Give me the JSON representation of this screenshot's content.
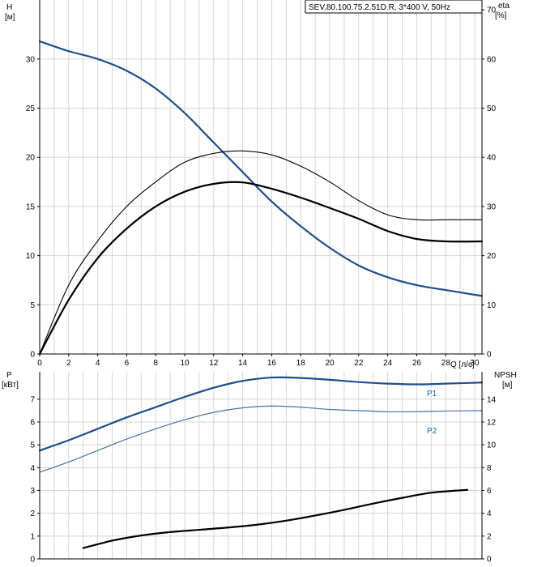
{
  "chart_data": [
    {
      "type": "line",
      "title": "SEV.80.100.75.2.51D.R, 3*400 V, 50Hz",
      "xlabel": "Q [л/с]",
      "xlim": [
        0,
        30.5
      ],
      "xticks": [
        0,
        2,
        4,
        6,
        8,
        10,
        12,
        14,
        16,
        18,
        20,
        22,
        24,
        26,
        28,
        30
      ],
      "ylabel_left": [
        "H",
        "[м]"
      ],
      "ylim_left": [
        0,
        36
      ],
      "yticks_left": [
        0,
        5,
        10,
        15,
        20,
        25,
        30
      ],
      "ylabel_right": [
        "eta",
        "[%]"
      ],
      "ylim_right": [
        0,
        72
      ],
      "yticks_right": [
        0,
        10,
        20,
        30,
        40,
        50,
        60,
        70
      ],
      "grid": true,
      "series": [
        {
          "axis": "left",
          "color": "#1f4e8c",
          "x": [
            0,
            2,
            4,
            6,
            8,
            10,
            12,
            14,
            16,
            18,
            20,
            22,
            24,
            26,
            28,
            30.5
          ],
          "values": [
            31.8,
            30.8,
            30.0,
            28.8,
            27.0,
            24.5,
            21.5,
            18.5,
            15.5,
            13.0,
            10.8,
            9.0,
            7.8,
            7.0,
            6.5,
            5.9
          ]
        },
        {
          "axis": "right",
          "color": "#000000",
          "x": [
            0,
            2,
            4,
            6,
            8,
            10,
            12,
            14,
            16,
            18,
            20,
            22,
            24,
            26,
            28,
            30.5
          ],
          "values": [
            0,
            14,
            23,
            30,
            35,
            39,
            40.8,
            41.3,
            40.5,
            38.2,
            35.0,
            31.2,
            28.3,
            27.3,
            27.3,
            27.3
          ]
        },
        {
          "axis": "right",
          "color": "#000000",
          "x": [
            0,
            2,
            4,
            6,
            8,
            10,
            12,
            14,
            16,
            18,
            20,
            22,
            24,
            26,
            28,
            30.5
          ],
          "values": [
            0,
            11,
            19.5,
            25.5,
            30,
            33,
            34.6,
            34.9,
            33.6,
            31.8,
            29.7,
            27.5,
            25.0,
            23.4,
            22.9,
            22.9
          ]
        }
      ]
    },
    {
      "type": "line",
      "xlim": [
        0,
        30.5
      ],
      "ylabel_left": [
        "P",
        "[кВт]"
      ],
      "ylim_left": [
        0,
        8.2
      ],
      "yticks_left": [
        0,
        1,
        2,
        3,
        4,
        5,
        6,
        7
      ],
      "ylabel_right": [
        "NPSH",
        "[м]"
      ],
      "ylim_right": [
        0,
        16.4
      ],
      "yticks_right": [
        0,
        2,
        4,
        6,
        8,
        10,
        12,
        14
      ],
      "grid": true,
      "series": [
        {
          "name": "P1",
          "axis": "left",
          "color": "#1f4e8c",
          "x": [
            0,
            2,
            4,
            6,
            8,
            10,
            12,
            14,
            16,
            18,
            20,
            22,
            24,
            26,
            28,
            30.5
          ],
          "values": [
            4.75,
            5.2,
            5.7,
            6.2,
            6.65,
            7.1,
            7.5,
            7.8,
            7.95,
            7.93,
            7.85,
            7.75,
            7.68,
            7.65,
            7.68,
            7.73
          ]
        },
        {
          "name": "P2",
          "axis": "left",
          "color": "#4a70a8",
          "x": [
            0,
            2,
            4,
            6,
            8,
            10,
            12,
            14,
            16,
            18,
            20,
            22,
            24,
            26,
            28,
            30.5
          ],
          "values": [
            3.8,
            4.25,
            4.75,
            5.25,
            5.7,
            6.1,
            6.42,
            6.62,
            6.7,
            6.65,
            6.55,
            6.5,
            6.45,
            6.45,
            6.48,
            6.5
          ]
        },
        {
          "axis": "right",
          "color": "#000000",
          "x": [
            3,
            5,
            7,
            9,
            11,
            13,
            15,
            17,
            19,
            21,
            23,
            25,
            27,
            29.5
          ],
          "values": [
            0.95,
            1.6,
            2.05,
            2.35,
            2.55,
            2.75,
            3.0,
            3.35,
            3.8,
            4.3,
            4.85,
            5.35,
            5.8,
            6.05
          ]
        }
      ]
    }
  ]
}
